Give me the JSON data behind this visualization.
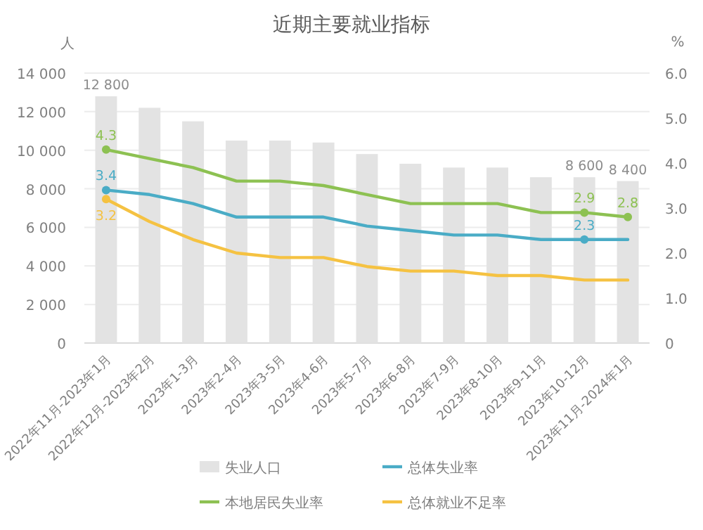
{
  "chart_data": {
    "type": "bar",
    "title": "近期主要就业指标",
    "ylabel": "人",
    "y2label": "%",
    "categories": [
      "2022年11月-2023年1月",
      "2022年12月-2023年2月",
      "2023年1-3月",
      "2023年2-4月",
      "2023年3-5月",
      "2023年4-6月",
      "2023年5-7月",
      "2023年6-8月",
      "2023年7-9月",
      "2023年8-10月",
      "2023年9-11月",
      "2023年10-12月",
      "2023年11月-2024年1月"
    ],
    "series": [
      {
        "name": "失业人口",
        "color": "#e3e3e3",
        "values": [
          12800,
          12200,
          11500,
          10500,
          10500,
          10400,
          9800,
          9300,
          9100,
          9100,
          8600,
          8600,
          8400
        ],
        "value_labels": [
          "12 800",
          null,
          null,
          null,
          null,
          null,
          null,
          null,
          null,
          null,
          null,
          "8 600",
          "8 400"
        ]
      },
      {
        "name": "总体失业率",
        "type": "line",
        "axis": "y2",
        "color": "#4aacc6",
        "values": [
          3.4,
          3.3,
          3.1,
          2.8,
          2.8,
          2.8,
          2.6,
          2.5,
          2.4,
          2.4,
          2.3,
          2.3,
          2.3
        ],
        "value_labels": [
          "3.4",
          null,
          null,
          null,
          null,
          null,
          null,
          null,
          null,
          null,
          null,
          "2.3",
          null
        ]
      },
      {
        "name": "本地居民失业率",
        "type": "line",
        "axis": "y2",
        "color": "#8dc152",
        "values": [
          4.3,
          4.1,
          3.9,
          3.6,
          3.6,
          3.5,
          3.3,
          3.1,
          3.1,
          3.1,
          2.9,
          2.9,
          2.8
        ],
        "value_labels": [
          "4.3",
          null,
          null,
          null,
          null,
          null,
          null,
          null,
          null,
          null,
          null,
          "2.9",
          "2.8"
        ]
      },
      {
        "name": "总体就业不足率",
        "type": "line",
        "axis": "y2",
        "color": "#f5c242",
        "values": [
          3.2,
          2.7,
          2.3,
          2.0,
          1.9,
          1.9,
          1.7,
          1.6,
          1.6,
          1.5,
          1.5,
          1.4,
          1.4
        ],
        "value_labels": [
          "3.2",
          null,
          null,
          null,
          null,
          null,
          null,
          null,
          null,
          null,
          null,
          null,
          null
        ]
      }
    ],
    "ylim": [
      0,
      14000
    ],
    "yticks": [
      0,
      {
        "value": 2000,
        "label": "2 000"
      },
      {
        "value": 4000,
        "label": "4 000"
      },
      {
        "value": 6000,
        "label": "6 000"
      },
      {
        "value": 8000,
        "label": "8 000"
      },
      {
        "value": 10000,
        "label": "10 000"
      },
      {
        "value": 12000,
        "label": "12 000"
      },
      {
        "value": 14000,
        "label": "14 000"
      }
    ],
    "y2lim": [
      0,
      6
    ],
    "y2ticks": [
      0,
      {
        "value": 1,
        "label": "1.0"
      },
      {
        "value": 2,
        "label": "2.0"
      },
      {
        "value": 3,
        "label": "3.0"
      },
      {
        "value": 4,
        "label": "4.0"
      },
      {
        "value": 5,
        "label": "5.0"
      },
      {
        "value": 6,
        "label": "6.0"
      }
    ],
    "grid": "y",
    "legend": "bottom"
  }
}
